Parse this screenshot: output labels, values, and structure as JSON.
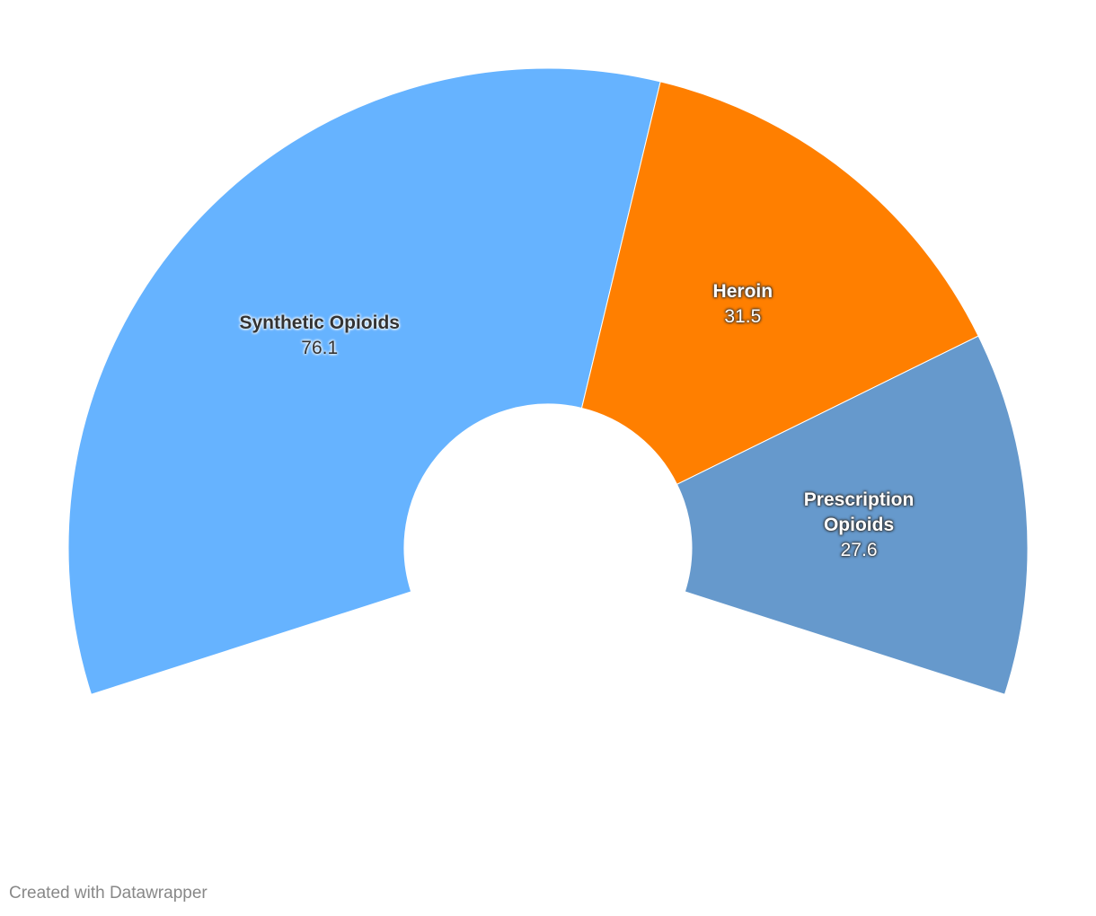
{
  "chart_data": {
    "type": "donut",
    "categories": [
      "Synthetic Opioids",
      "Heroin",
      "Prescription Opioids"
    ],
    "values": [
      76.1,
      31.5,
      27.6
    ],
    "colors": [
      "#66b3ff",
      "#ff7f00",
      "#6699cc"
    ]
  },
  "footer": "Created with Datawrapper"
}
